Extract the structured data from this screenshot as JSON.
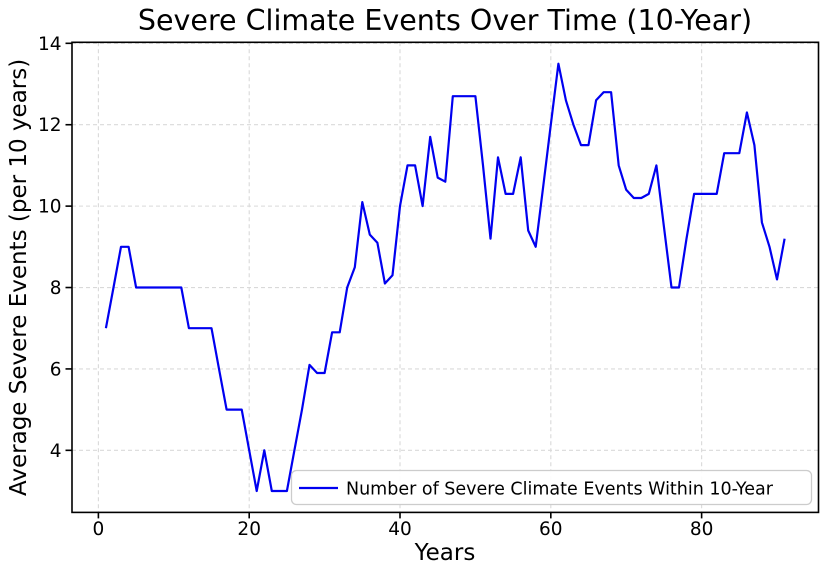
{
  "window": {
    "background": "#ffffff"
  },
  "chart_data": {
    "type": "line",
    "title": "Severe Climate Events Over Time (10-Year)",
    "xlabel": "Years",
    "ylabel": "Average Severe Events (per 10 years)",
    "legend": {
      "label": "Number of Severe Climate Events Within 10-Year",
      "position": "lower right"
    },
    "line_color": "#0000F0",
    "spine_color": "#000000",
    "grid": true,
    "grid_style": "dashed",
    "grid_color": "#d9d9d9",
    "xlim": [
      -3.5,
      95.5
    ],
    "ylim": [
      2.475,
      14.025
    ],
    "xticks": [
      0,
      20,
      40,
      60,
      80
    ],
    "yticks": [
      4,
      6,
      8,
      10,
      12,
      14
    ],
    "x": [
      1,
      2,
      3,
      4,
      5,
      6,
      7,
      8,
      9,
      10,
      11,
      12,
      13,
      14,
      15,
      16,
      17,
      18,
      19,
      20,
      21,
      22,
      23,
      24,
      25,
      26,
      27,
      28,
      29,
      30,
      31,
      32,
      33,
      34,
      35,
      36,
      37,
      38,
      39,
      40,
      41,
      42,
      43,
      44,
      45,
      46,
      47,
      48,
      49,
      50,
      51,
      52,
      53,
      54,
      55,
      56,
      57,
      58,
      59,
      60,
      61,
      62,
      63,
      64,
      65,
      66,
      67,
      68,
      69,
      70,
      71,
      72,
      73,
      74,
      75,
      76,
      77,
      78,
      79,
      80,
      81,
      82,
      83,
      84,
      85,
      86,
      87,
      88,
      89,
      90,
      91
    ],
    "y": [
      7.0,
      8.0,
      9.0,
      9.0,
      8.0,
      8.0,
      8.0,
      8.0,
      8.0,
      8.0,
      8.0,
      7.0,
      7.0,
      7.0,
      7.0,
      6.0,
      5.0,
      5.0,
      5.0,
      4.0,
      3.0,
      4.0,
      3.0,
      3.0,
      3.0,
      4.0,
      5.0,
      6.1,
      5.9,
      5.9,
      6.9,
      6.9,
      8.0,
      8.5,
      10.1,
      9.3,
      9.1,
      8.1,
      8.3,
      10.0,
      11.0,
      11.0,
      10.0,
      11.7,
      10.7,
      10.6,
      12.7,
      12.7,
      12.7,
      12.7,
      11.0,
      9.2,
      11.2,
      10.3,
      10.3,
      11.2,
      9.4,
      9.0,
      10.5,
      12.0,
      13.5,
      12.6,
      12.0,
      11.5,
      11.5,
      12.6,
      12.8,
      12.8,
      11.0,
      10.4,
      10.2,
      10.2,
      10.3,
      11.0,
      9.5,
      8.0,
      8.0,
      9.2,
      10.3,
      10.3,
      10.3,
      10.3,
      11.3,
      11.3,
      11.3,
      12.3,
      11.5,
      9.6,
      9.0,
      8.2,
      9.2
    ]
  }
}
